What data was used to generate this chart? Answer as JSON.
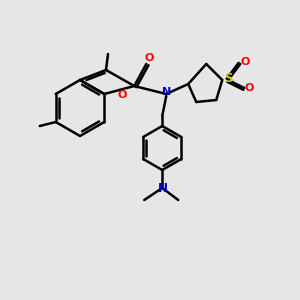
{
  "bg_color": "#e6e6e6",
  "bond_color": "#000000",
  "bond_width": 1.8,
  "figsize": [
    3.0,
    3.0
  ],
  "dpi": 100,
  "colors": {
    "O": "#ff0000",
    "N": "#0000cd",
    "S": "#cccc00"
  }
}
